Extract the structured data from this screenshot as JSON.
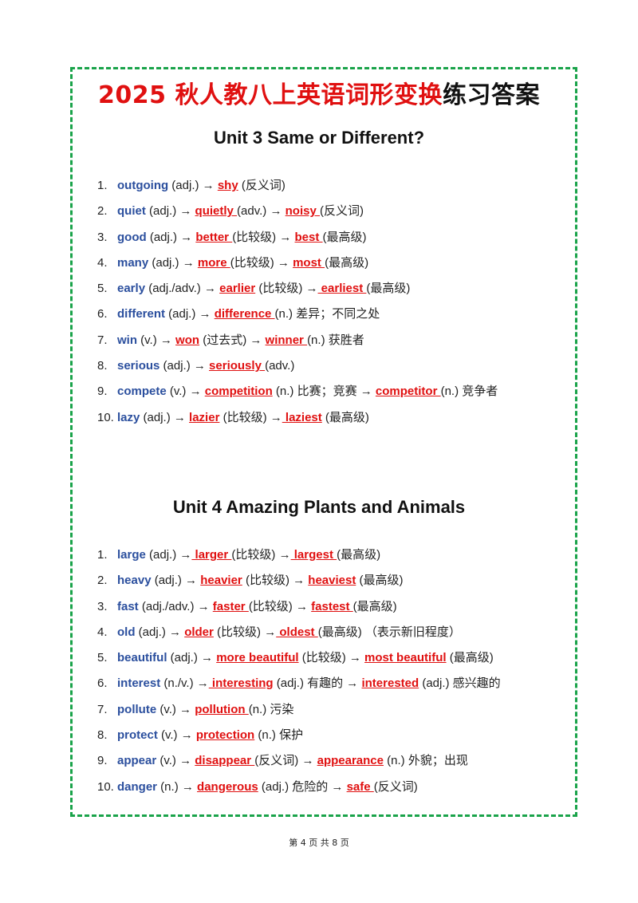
{
  "title": {
    "part1": "2025 秋人教八上英语",
    "part2": "词形变换",
    "part3": "练习答案"
  },
  "units": [
    {
      "heading": "Unit 3 Same or Different?",
      "items": [
        {
          "num": "1.",
          "word": "outgoing",
          "pre": " (adj.) → ",
          "ans1": "shy",
          "mid": " (反义词)",
          "ans2": "",
          "post": ""
        },
        {
          "num": "2.",
          "word": "quiet",
          "pre": " (adj.) → ",
          "ans1": "quietly ",
          "mid": "(adv.) → ",
          "ans2": "noisy ",
          "post": "(反义词)"
        },
        {
          "num": "3.",
          "word": "good",
          "pre": " (adj.) → ",
          "ans1": "better ",
          "mid": "(比较级) → ",
          "ans2": "best ",
          "post": "(最高级)"
        },
        {
          "num": "4.",
          "word": "many",
          "pre": " (adj.) → ",
          "ans1": "more ",
          "mid": "(比较级) → ",
          "ans2": "most ",
          "post": "(最高级)"
        },
        {
          "num": "5.",
          "word": "early",
          "pre": " (adj./adv.) → ",
          "ans1": "earlier",
          "mid": " (比较级) →",
          "ans2": " earliest ",
          "post": "(最高级)"
        },
        {
          "num": "6.",
          "word": "different",
          "pre": " (adj.) → ",
          "ans1": "difference ",
          "mid": "(n.) 差异；不同之处",
          "ans2": "",
          "post": ""
        },
        {
          "num": "7.",
          "word": "win",
          "pre": " (v.) → ",
          "ans1": "won",
          "mid": " (过去式) → ",
          "ans2": "winner ",
          "post": "(n.) 获胜者"
        },
        {
          "num": "8.",
          "word": "serious",
          "pre": " (adj.) → ",
          "ans1": "seriously ",
          "mid": "(adv.)",
          "ans2": "",
          "post": ""
        },
        {
          "num": "9.",
          "word": "compete",
          "pre": " (v.) → ",
          "ans1": "competition",
          "mid": " (n.) 比赛；竞赛 → ",
          "ans2": "competitor ",
          "post": "(n.) 竞争者"
        },
        {
          "num": "10.",
          "word": "lazy",
          "pre": " (adj.) → ",
          "ans1": "lazier",
          "mid": " (比较级) →",
          "ans2": " laziest",
          "post": " (最高级)"
        }
      ]
    },
    {
      "heading": "Unit 4 Amazing Plants and Animals",
      "items": [
        {
          "num": "1.",
          "word": "large",
          "pre": " (adj.) →",
          "ans1": " larger ",
          "mid": "(比较级) →",
          "ans2": " largest ",
          "post": "(最高级)"
        },
        {
          "num": "2.",
          "word": "heavy",
          "pre": " (adj.) → ",
          "ans1": "heavier",
          "mid": " (比较级) → ",
          "ans2": "heaviest",
          "post": " (最高级)"
        },
        {
          "num": "3.",
          "word": "fast",
          "pre": " (adj./adv.) → ",
          "ans1": "faster ",
          "mid": "(比较级) → ",
          "ans2": "fastest ",
          "post": "(最高级)"
        },
        {
          "num": "4.",
          "word": "old",
          "pre": " (adj.) → ",
          "ans1": "older",
          "mid": " (比较级) →",
          "ans2": " oldest ",
          "post": "(最高级) （表示新旧程度）"
        },
        {
          "num": "5.",
          "word": "beautiful",
          "pre": " (adj.) → ",
          "ans1": "more beautiful",
          "mid": " (比较级) → ",
          "ans2": "most beautiful",
          "post": " (最高级)"
        },
        {
          "num": "6.",
          "word": "interest",
          "pre": " (n./v.) →",
          "ans1": " interesting",
          "mid": " (adj.) 有趣的 → ",
          "ans2": "interested",
          "post": " (adj.) 感兴趣的"
        },
        {
          "num": "7.",
          "word": "pollute",
          "pre": " (v.) → ",
          "ans1": "pollution ",
          "mid": "(n.) 污染",
          "ans2": "",
          "post": ""
        },
        {
          "num": "8.",
          "word": "protect",
          "pre": " (v.) → ",
          "ans1": "protection",
          "mid": " (n.) 保护",
          "ans2": "",
          "post": ""
        },
        {
          "num": "9.",
          "word": "appear",
          "pre": " (v.) → ",
          "ans1": "disappear ",
          "mid": "(反义词) → ",
          "ans2": "appearance",
          "post": " (n.) 外貌；出现"
        },
        {
          "num": "10.",
          "word": "danger",
          "pre": " (n.) → ",
          "ans1": "dangerous",
          "mid": " (adj.) 危险的 → ",
          "ans2": "safe ",
          "post": "(反义词)"
        }
      ]
    }
  ],
  "footer": "第 4 页 共 8 页",
  "colors": {
    "border": "#1aa34a",
    "answer": "#e01010",
    "keyword": "#2b4f9e"
  }
}
